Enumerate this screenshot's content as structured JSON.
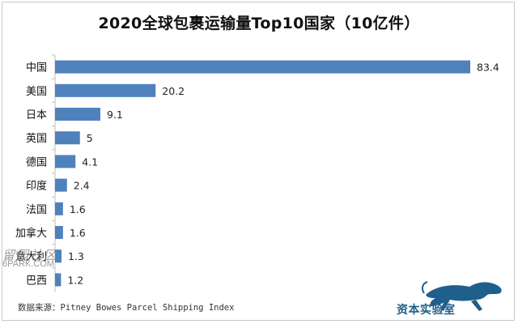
{
  "chart_data": {
    "type": "bar",
    "orientation": "horizontal",
    "title": "2020全球包裹运输量Top10国家（10亿件）",
    "categories": [
      "中国",
      "美国",
      "日本",
      "英国",
      "德国",
      "印度",
      "法国",
      "加拿大",
      "意大利",
      "巴西"
    ],
    "values": [
      83.4,
      20.2,
      9.1,
      5,
      4.1,
      2.4,
      1.6,
      1.6,
      1.3,
      1.2
    ],
    "value_labels": [
      "83.4",
      "20.2",
      "9.1",
      "5",
      "4.1",
      "2.4",
      "1.6",
      "1.6",
      "1.3",
      "1.2"
    ],
    "xlim": [
      0,
      83.4
    ],
    "grid": false,
    "legend": "none",
    "bar_color": "#4f81bd"
  },
  "source": "数据来源：Pitney Bowes Parcel Shipping Index",
  "watermark": {
    "line1": "留园社区",
    "line2": "6PARK.COM"
  },
  "brand": {
    "name": "资本实验室",
    "color": "#1f5f8b",
    "icon": "panther-icon"
  }
}
